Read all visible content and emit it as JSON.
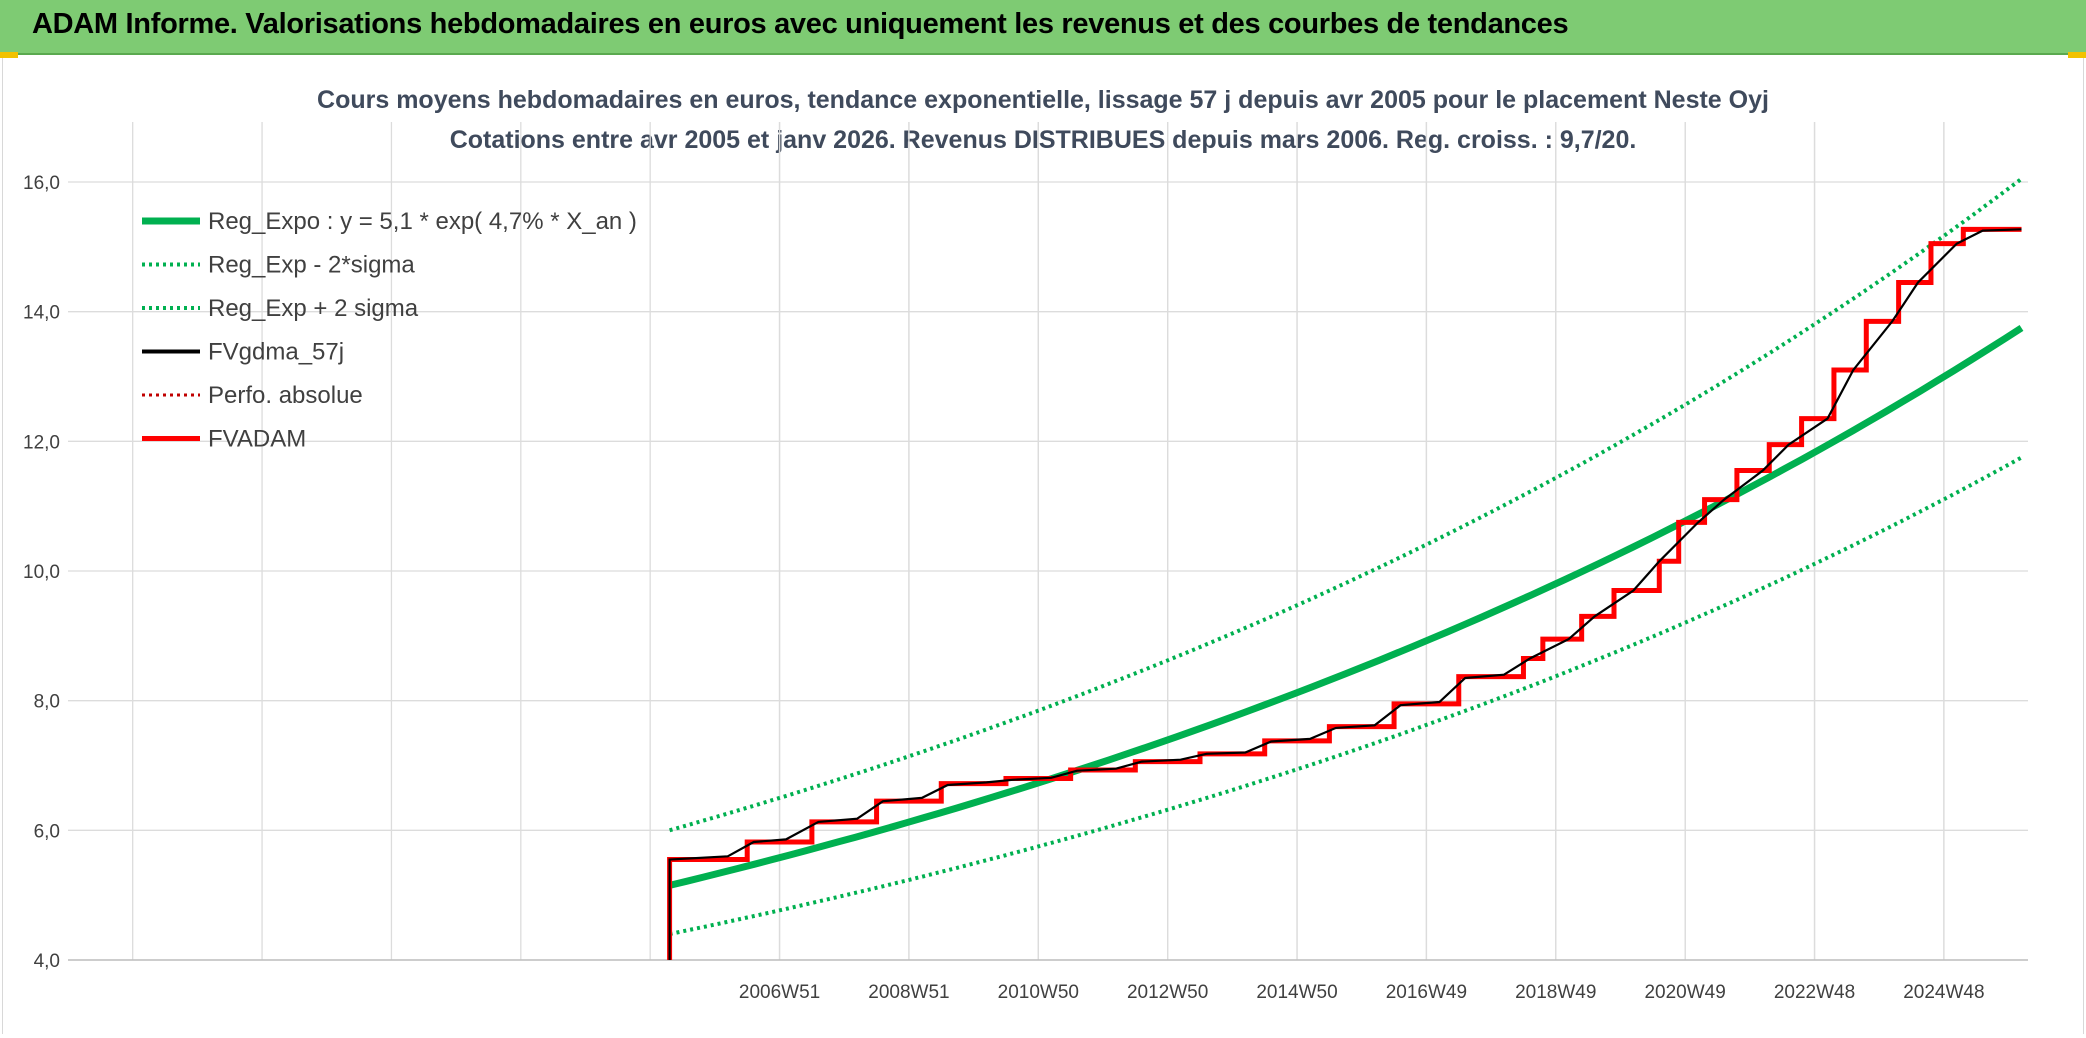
{
  "banner": {
    "title": "ADAM Informe. Valorisations hebdomadaires en euros avec uniquement les revenus et des courbes de tendances"
  },
  "colors": {
    "banner": "#7ecb73",
    "regression": "#00b050",
    "smoothed": "#000000",
    "perfo": "#c00000",
    "adam": "#ff0000",
    "corner": "#f2c200"
  },
  "chart_data": {
    "type": "line",
    "title": "Cours moyens hebdomadaires en euros, tendance exponentielle, lissage 57 j depuis avr 2005 pour le placement Neste Oyj",
    "subtitle": "Cotations entre avr 2005 et janv 2026. Revenus DISTRIBUES depuis mars 2006. Reg. croiss. : 9,7/20.",
    "xlabel": "",
    "ylabel": "",
    "ylim": [
      4,
      16
    ],
    "xlim": [
      1996.0,
      2026.3
    ],
    "y_ticks": [
      "4,0",
      "6,0",
      "8,0",
      "10,0",
      "12,0",
      "14,0",
      "16,0"
    ],
    "x_ticks": [
      {
        "label": "2006W51",
        "x": 2007.0
      },
      {
        "label": "2008W51",
        "x": 2009.0
      },
      {
        "label": "2010W50",
        "x": 2011.0
      },
      {
        "label": "2012W50",
        "x": 2013.0
      },
      {
        "label": "2014W50",
        "x": 2015.0
      },
      {
        "label": "2016W49",
        "x": 2017.0
      },
      {
        "label": "2018W49",
        "x": 2019.0
      },
      {
        "label": "2020W49",
        "x": 2021.0
      },
      {
        "label": "2022W48",
        "x": 2023.0
      },
      {
        "label": "2024W48",
        "x": 2025.0
      }
    ],
    "grid": true,
    "legend_position": "top-left",
    "series": [
      {
        "name": "Reg_Expo : y = 5,1 * exp( 4,7% *  X_an )",
        "style": "solid",
        "color": "#00b050",
        "x": [
          2005.3,
          2026.2
        ],
        "y": [
          5.15,
          13.75
        ]
      },
      {
        "name": "Reg_Exp - 2*sigma",
        "style": "dotted",
        "color": "#00b050",
        "x": [
          2005.3,
          2026.2
        ],
        "y": [
          4.4,
          11.75
        ]
      },
      {
        "name": "Reg_Exp + 2 sigma",
        "style": "dotted",
        "color": "#00b050",
        "x": [
          2005.3,
          2026.2
        ],
        "y": [
          6.0,
          16.05
        ]
      },
      {
        "name": "FVgdma_57j",
        "style": "solid",
        "color": "#000000",
        "x": [
          2005.3,
          2005.3,
          2006.2,
          2006.6,
          2007.1,
          2007.6,
          2008.2,
          2008.6,
          2009.2,
          2009.6,
          2010.2,
          2010.6,
          2011.2,
          2011.6,
          2012.2,
          2012.6,
          2013.2,
          2013.6,
          2014.2,
          2014.6,
          2015.2,
          2015.6,
          2016.2,
          2016.6,
          2017.2,
          2017.6,
          2018.2,
          2018.6,
          2019.2,
          2019.6,
          2020.2,
          2020.6,
          2021.2,
          2021.6,
          2022.2,
          2022.6,
          2023.2,
          2023.6,
          2024.2,
          2024.6,
          2025.2,
          2025.6,
          2026.2
        ],
        "y": [
          4.0,
          5.55,
          5.6,
          5.82,
          5.86,
          6.13,
          6.18,
          6.45,
          6.5,
          6.7,
          6.74,
          6.78,
          6.81,
          6.92,
          6.95,
          7.06,
          7.09,
          7.18,
          7.2,
          7.37,
          7.41,
          7.58,
          7.62,
          7.93,
          7.98,
          8.35,
          8.4,
          8.65,
          8.95,
          9.3,
          9.7,
          10.15,
          10.75,
          11.1,
          11.55,
          11.95,
          12.35,
          13.1,
          13.85,
          14.45,
          15.05,
          15.25,
          15.27
        ]
      },
      {
        "name": "Perfo. absolue",
        "style": "dotted",
        "color": "#c00000",
        "x": [],
        "y": []
      },
      {
        "name": "FVADAM",
        "style": "solid",
        "color": "#ff0000",
        "steps": [
          {
            "x": 2005.3,
            "y": 5.55
          },
          {
            "x": 2006.5,
            "y": 5.82
          },
          {
            "x": 2007.5,
            "y": 6.13
          },
          {
            "x": 2008.5,
            "y": 6.45
          },
          {
            "x": 2009.5,
            "y": 6.72
          },
          {
            "x": 2010.5,
            "y": 6.8
          },
          {
            "x": 2011.5,
            "y": 6.93
          },
          {
            "x": 2012.5,
            "y": 7.06
          },
          {
            "x": 2013.5,
            "y": 7.18
          },
          {
            "x": 2014.5,
            "y": 7.38
          },
          {
            "x": 2015.5,
            "y": 7.6
          },
          {
            "x": 2016.5,
            "y": 7.95
          },
          {
            "x": 2017.5,
            "y": 8.37
          },
          {
            "x": 2018.5,
            "y": 8.65
          },
          {
            "x": 2018.8,
            "y": 8.95
          },
          {
            "x": 2019.4,
            "y": 9.3
          },
          {
            "x": 2019.9,
            "y": 9.7
          },
          {
            "x": 2020.6,
            "y": 10.15
          },
          {
            "x": 2020.9,
            "y": 10.75
          },
          {
            "x": 2021.3,
            "y": 11.1
          },
          {
            "x": 2021.8,
            "y": 11.55
          },
          {
            "x": 2022.3,
            "y": 11.95
          },
          {
            "x": 2022.8,
            "y": 12.35
          },
          {
            "x": 2023.3,
            "y": 13.1
          },
          {
            "x": 2023.8,
            "y": 13.85
          },
          {
            "x": 2024.3,
            "y": 14.45
          },
          {
            "x": 2024.8,
            "y": 15.05
          },
          {
            "x": 2025.3,
            "y": 15.27
          }
        ],
        "x_end": 2026.2
      }
    ]
  }
}
